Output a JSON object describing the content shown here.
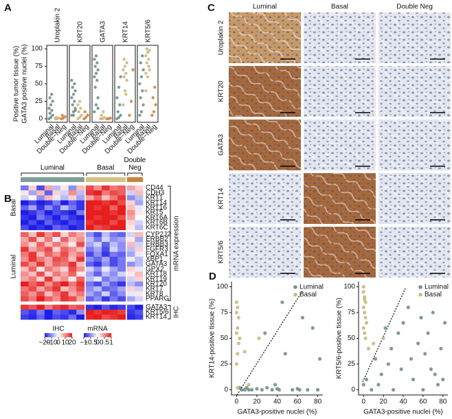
{
  "chart_data": [
    {
      "panel": "A",
      "type": "strip",
      "ylabel": [
        "Positive tumor tissue (%)",
        "GATA3 positive nuclei (%)"
      ],
      "ylim": [
        -5,
        105
      ],
      "yticks": [
        0,
        25,
        50,
        75,
        100
      ],
      "categories": [
        "Luminal",
        "Basal",
        "Double−Neg"
      ],
      "colors": [
        "#6f928b",
        "#cbb87e",
        "#d2843e"
      ],
      "facets": [
        {
          "title": "Uroplakin 2",
          "values": [
            [
              0,
              2,
              5,
              8,
              12,
              15,
              20,
              25,
              30,
              35
            ],
            [
              0,
              0,
              1,
              2
            ],
            [
              0,
              1,
              3,
              5
            ]
          ]
        },
        {
          "title": "KRT20",
          "values": [
            [
              5,
              10,
              15,
              20,
              25,
              30,
              35,
              40,
              45,
              50,
              55,
              5,
              12
            ],
            [
              0,
              2,
              5,
              10,
              15,
              20,
              25
            ],
            [
              0,
              2,
              5,
              10
            ]
          ]
        },
        {
          "title": "GATA3",
          "values": [
            [
              10,
              20,
              30,
              45,
              55,
              60,
              65,
              70,
              75,
              80,
              85,
              90,
              15
            ],
            [
              0,
              0,
              2,
              5,
              10
            ],
            [
              0,
              0,
              1
            ]
          ]
        },
        {
          "title": "KRT14",
          "values": [
            [
              0,
              2,
              5,
              10,
              20,
              30,
              45,
              60
            ],
            [
              20,
              40,
              55,
              60,
              65,
              70,
              75,
              80,
              85,
              35
            ],
            [
              5,
              25,
              70
            ]
          ]
        },
        {
          "title": "KRT5/6",
          "values": [
            [
              5,
              10,
              20,
              30,
              40,
              50,
              60,
              70,
              80,
              90
            ],
            [
              40,
              60,
              70,
              80,
              85,
              90,
              95,
              98,
              100,
              75,
              65
            ],
            [
              5,
              10,
              20,
              30,
              45
            ]
          ]
        }
      ]
    },
    {
      "panel": "B",
      "type": "heatmap",
      "column_groups": [
        {
          "name": "Luminal",
          "color": "#7f9f96",
          "values": [
            [
              -0.6,
              0.2,
              -0.8,
              0.4,
              -0.3,
              0.1,
              -0.5,
              0.3
            ],
            [
              0.1,
              -0.4,
              0.3,
              -0.7,
              0.2,
              -0.2,
              0.5,
              -0.3
            ],
            [
              -0.2,
              0,
              -0.5,
              0.3,
              -0.1,
              -0.3,
              0.2,
              -0.4
            ],
            [
              -1,
              -0.8,
              -1,
              -0.9,
              -0.6,
              -1,
              -0.7,
              -0.9
            ],
            [
              -0.7,
              -0.4,
              -0.9,
              -0.5,
              -0.8,
              -0.3,
              -0.6,
              -0.9
            ],
            [
              -1,
              -0.9,
              -0.7,
              -1,
              -0.8,
              -0.9,
              -1,
              -0.6
            ],
            [
              -0.9,
              -1,
              -0.6,
              -0.8,
              -1,
              -0.7,
              -0.9,
              -1
            ],
            [
              -1,
              -0.8,
              -1,
              -0.7,
              -0.9,
              -1,
              -0.8,
              -0.9
            ],
            [
              -0.8,
              -1,
              -0.9,
              -1,
              -0.7,
              -0.8,
              -1,
              -0.9
            ],
            [
              0.7,
              0.3,
              0.9,
              0.5,
              0.8,
              0.2,
              0.6,
              0.4
            ],
            [
              0.4,
              0.8,
              0.2,
              0.6,
              -0.1,
              0.7,
              0.3,
              0.5
            ],
            [
              0.5,
              0.2,
              0.7,
              0.3,
              0.6,
              0.4,
              0.1,
              0.8
            ],
            [
              0.9,
              0.4,
              0.6,
              0.8,
              0.2,
              0.7,
              0.5,
              0.3
            ],
            [
              0.6,
              0.9,
              0.3,
              0.7,
              0.5,
              0.8,
              0.4,
              0.6
            ],
            [
              0.5,
              0.9,
              0.6,
              0.4,
              0.8,
              0.7,
              0.3,
              0.9
            ],
            [
              0.8,
              0.5,
              0.9,
              0.4,
              0.7,
              0.6,
              0.9,
              0.3
            ],
            [
              0.3,
              0.7,
              0.1,
              0.6,
              0.4,
              0.2,
              0.8,
              0.5
            ],
            [
              0.5,
              0.3,
              0.8,
              0.2,
              0.6,
              0.4,
              0.7,
              0.1
            ],
            [
              0.4,
              0.6,
              0.2,
              0.9,
              0.3,
              0.5,
              0.1,
              0.7
            ],
            [
              1,
              0.7,
              0.9,
              0.5,
              0.8,
              1,
              0.6,
              0.9
            ],
            [
              0.6,
              0.8,
              0.4,
              0.7,
              0.9,
              0.3,
              0.5,
              0.8
            ],
            [
              0.7,
              0.5,
              0.8,
              0.3,
              0.6,
              0.9,
              0.4,
              0.6
            ],
            [
              0.8,
              0.6,
              1,
              0.7,
              0.5,
              0.9,
              0.8,
              0.4
            ],
            [
              18,
              15,
              20,
              12,
              17,
              19,
              14,
              16
            ],
            [
              -15,
              -18,
              -12,
              -20,
              -14,
              -16,
              -19,
              -10
            ],
            [
              -17,
              -19,
              -14,
              -20,
              -16,
              -18,
              -13,
              -20
            ]
          ]
        },
        {
          "name": "Basal",
          "color": "#d6c184",
          "values": [
            [
              0.8,
              0.5,
              0.9,
              0.6,
              0.7
            ],
            [
              0.9,
              1,
              0.6,
              0.8,
              0.7
            ],
            [
              0.4,
              0.7,
              0.3,
              0.6,
              0.9
            ],
            [
              1,
              1,
              0.9,
              1,
              0.8
            ],
            [
              1,
              0.9,
              1,
              0.7,
              1
            ],
            [
              1,
              1,
              1,
              0.9,
              1
            ],
            [
              1,
              0.9,
              1,
              1,
              0.8
            ],
            [
              0.9,
              1,
              1,
              0.8,
              1
            ],
            [
              1,
              0.8,
              0.9,
              1,
              1
            ],
            [
              -0.5,
              -0.8,
              -0.3,
              -0.6,
              -0.7
            ],
            [
              -0.3,
              -0.6,
              -0.2,
              -0.5,
              -0.4
            ],
            [
              -0.4,
              -0.2,
              -0.7,
              -0.3,
              -0.5
            ],
            [
              -0.6,
              -0.4,
              -0.8,
              -0.2,
              -0.5
            ],
            [
              -0.8,
              -0.5,
              -0.9,
              -0.6,
              -0.7
            ],
            [
              -0.5,
              -0.7,
              -0.4,
              -0.8,
              -0.6
            ],
            [
              -0.7,
              -0.9,
              -0.5,
              -0.8,
              -0.6
            ],
            [
              -0.2,
              -0.5,
              -0.1,
              -0.4,
              -0.6
            ],
            [
              -0.4,
              -0.7,
              -0.3,
              -0.5,
              -0.2
            ],
            [
              -0.3,
              -0.1,
              -0.6,
              -0.4,
              -0.5
            ],
            [
              -0.6,
              -0.8,
              -0.4,
              -0.7,
              -0.9
            ],
            [
              -0.5,
              -0.3,
              -0.7,
              -0.6,
              -0.4
            ],
            [
              -0.4,
              -0.6,
              -0.2,
              -0.7,
              -0.5
            ],
            [
              -0.7,
              -0.5,
              -0.9,
              -0.6,
              -0.8
            ],
            [
              -18,
              -20,
              -15,
              -19,
              -17
            ],
            [
              20,
              18,
              20,
              19,
              17
            ],
            [
              19,
              20,
              16,
              18,
              20
            ]
          ]
        },
        {
          "name": "Double Neg",
          "color": "#c9843e",
          "values": [
            [
              0.4,
              0.2
            ],
            [
              -0.2,
              0.3
            ],
            [
              -0.5,
              -0.3
            ],
            [
              0.2,
              -0.4
            ],
            [
              0.3,
              -0.1
            ],
            [
              0.5,
              0.1
            ],
            [
              0.4,
              0
            ],
            [
              0.2,
              -0.2
            ],
            [
              0.1,
              -0.3
            ],
            [
              -0.2,
              0.3
            ],
            [
              0.1,
              -0.4
            ],
            [
              0.3,
              -0.2
            ],
            [
              -0.3,
              0.2
            ],
            [
              -0.4,
              -0.1
            ],
            [
              -0.1,
              -0.3
            ],
            [
              -0.5,
              -0.3
            ],
            [
              0.2,
              -0.1
            ],
            [
              0.1,
              0.3
            ],
            [
              -0.2,
              0.2
            ],
            [
              -0.3,
              -0.5
            ],
            [
              0.2,
              -0.2
            ],
            [
              -0.1,
              0.1
            ],
            [
              -0.4,
              -0.2
            ],
            [
              -16,
              -20
            ],
            [
              -18,
              -15
            ],
            [
              -19,
              -17
            ]
          ]
        }
      ],
      "row_blocks": [
        {
          "name": "mRNA expression",
          "legend": {
            "title": "mRNA",
            "lim": [
              -1,
              1
            ],
            "ticks": [
              {
                "value": -1,
                "label": "−1"
              },
              {
                "value": -0.5,
                "label": "−0.5"
              },
              0,
              0.5,
              1
            ]
          },
          "groups": [
            {
              "name": "Basal",
              "rows": [
                "CD44",
                "CDH3",
                "KRT1",
                "KRT14",
                "KRT16",
                "KRT5",
                "KRT6A",
                "KRT6B",
                "KRT6C"
              ]
            },
            {
              "name": "Luminal",
              "rows": [
                "CYP2J2",
                "ERBB2",
                "ERBB3",
                "FGFR3",
                "FOXA1",
                "XBP1",
                "GATA3",
                "GPX2",
                "KRT18",
                "KRT19",
                "KRT20",
                "KRT7",
                "KRT8",
                "PPARG"
              ]
            }
          ]
        },
        {
          "name": "IHC",
          "legend": {
            "title": "IHC",
            "lim": [
              -20,
              20
            ],
            "ticks": [
              {
                "value": -20,
                "label": "−20"
              },
              {
                "value": -10,
                "label": "−10"
              },
              0,
              10,
              20
            ]
          },
          "groups": [
            {
              "rows": [
                "GATA3",
                "KRT5/6",
                "KRT14"
              ]
            }
          ]
        }
      ]
    },
    {
      "panel": "D",
      "type": "scatter",
      "ylabel": "KRT14-positive tissue (%)",
      "xlabel": "GATA3-positive nuclei (%)",
      "xlim": [
        -5,
        85
      ],
      "ylim": [
        -5,
        105
      ],
      "xticks": [
        0,
        20,
        40,
        60,
        80
      ],
      "yticks": [
        0,
        25,
        50,
        75,
        100
      ],
      "legend": "upper right",
      "series": [
        {
          "name": "Luminal",
          "color": "#6f928b",
          "x": [
            5,
            10,
            15,
            20,
            25,
            30,
            35,
            40,
            45,
            48,
            55,
            60,
            62,
            65,
            70,
            75,
            80,
            82,
            3,
            8,
            12,
            28,
            38,
            42
          ],
          "values": [
            0,
            2,
            0,
            1,
            0,
            2,
            0,
            1,
            85,
            35,
            0,
            1,
            0,
            70,
            0,
            60,
            0,
            30,
            2,
            0,
            0,
            55,
            5,
            0
          ]
        },
        {
          "name": "Basal",
          "color": "#cbb87e",
          "x": [
            0,
            1,
            0,
            2,
            1,
            0,
            3,
            2,
            1,
            0,
            8,
            12,
            22,
            1
          ],
          "values": [
            85,
            80,
            75,
            70,
            60,
            55,
            50,
            45,
            35,
            25,
            37,
            5,
            50,
            2
          ]
        }
      ]
    },
    {
      "type": "scatter",
      "ylabel": "KRT5/6-positive tissue (%)",
      "xlabel": "GATA3-positive nuclei (%)",
      "xlim": [
        -5,
        85
      ],
      "ylim": [
        -5,
        105
      ],
      "xticks": [
        0,
        20,
        40,
        60,
        80
      ],
      "yticks": [
        0,
        25,
        50,
        75,
        100
      ],
      "legend": "upper right",
      "series": [
        {
          "name": "Luminal",
          "color": "#6f928b",
          "x": [
            0,
            3,
            8,
            12,
            15,
            18,
            22,
            25,
            28,
            30,
            35,
            38,
            40,
            45,
            48,
            50,
            55,
            58,
            60,
            62,
            65,
            68,
            70,
            72,
            75,
            78,
            80,
            82
          ],
          "values": [
            5,
            10,
            0,
            30,
            5,
            15,
            60,
            25,
            40,
            0,
            55,
            20,
            65,
            80,
            30,
            10,
            45,
            70,
            0,
            35,
            55,
            20,
            75,
            15,
            5,
            40,
            10,
            65
          ]
        },
        {
          "name": "Basal",
          "color": "#cbb87e",
          "x": [
            0,
            0,
            1,
            1,
            2,
            0,
            1,
            2,
            3,
            0,
            1,
            2,
            5,
            10,
            20
          ],
          "values": [
            100,
            95,
            90,
            88,
            85,
            80,
            75,
            70,
            65,
            60,
            55,
            50,
            40,
            45,
            50
          ]
        }
      ]
    }
  ],
  "micrographs": {
    "panel": "C",
    "columns": [
      "Luminal",
      "Basal",
      "Double Neg"
    ],
    "rows": [
      "Uroplakin 2",
      "KRT20",
      "GATA3",
      "KRT14",
      "KRT5/6"
    ]
  }
}
